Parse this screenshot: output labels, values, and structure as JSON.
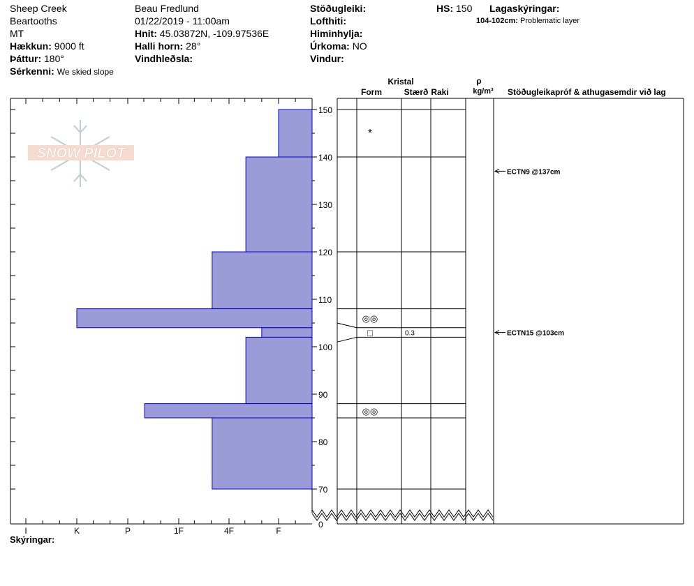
{
  "header": {
    "location": "Sheep Creek",
    "range": "Beartooths",
    "state": "MT",
    "elevation_label": "Hækkun:",
    "elevation_value": "9000 ft",
    "aspect_label": "Þáttur:",
    "aspect_value": "180°",
    "features_label": "Sérkenni:",
    "features_value": "We skied slope",
    "observer": "Beau  Fredlund",
    "datetime": "01/22/2019 - 11:00am",
    "coords_label": "Hnit:",
    "coords_value": "45.03872N, -109.97536E",
    "slope_label": "Halli horn:",
    "slope_value": "28°",
    "wind_loading_label": "Vindhleðsla:",
    "stability_label": "Stöðugleiki:",
    "air_temp_label": "Lofthiti:",
    "sky_label": "Himinhylja:",
    "precip_label": "Úrkoma:",
    "precip_value": "NO",
    "wind_label": "Vindur:",
    "hs_label": "HS:",
    "hs_value": "150",
    "layer_notes_label": "Lagaskýringar:",
    "layer_note_range": "104-102cm:",
    "layer_note_text": "Problematic layer"
  },
  "logo_text": "SNOW PILOT",
  "columns": {
    "crystal": "Kristal",
    "form": "Form",
    "size": "Stærð",
    "moisture": "Raki",
    "rho": "ρ",
    "density_unit": "kg/m³",
    "tests": "Stöðugleikapróf & athugasemdir við lag"
  },
  "footer": {
    "notes_label": "Skýringar:"
  },
  "colors": {
    "hardness_fill": "#9b9bd8",
    "hardness_stroke": "#0000cc"
  },
  "chart_data": {
    "type": "bar",
    "orientation": "horizontal",
    "y_axis": {
      "label": "",
      "ticks": [
        70,
        80,
        90,
        100,
        110,
        120,
        130,
        140,
        150
      ],
      "break_at": 0,
      "range": [
        70,
        150
      ]
    },
    "x_axis": {
      "label": "",
      "ticks": [
        "I",
        "K",
        "P",
        "1F",
        "4F",
        "F"
      ]
    },
    "hardness_layers": [
      {
        "top": 150,
        "bottom": 140,
        "hardness": "F"
      },
      {
        "top": 140,
        "bottom": 120,
        "hardness": "4F-"
      },
      {
        "top": 120,
        "bottom": 108,
        "hardness": "4F+"
      },
      {
        "top": 108,
        "bottom": 104,
        "hardness": "K"
      },
      {
        "top": 104,
        "bottom": 102,
        "hardness": "F+"
      },
      {
        "top": 102,
        "bottom": 88,
        "hardness": "4F-"
      },
      {
        "top": 88,
        "bottom": 85,
        "hardness": "P-"
      },
      {
        "top": 85,
        "bottom": 70,
        "hardness": "4F+"
      }
    ],
    "layer_lines": [
      150,
      140,
      120,
      108,
      104,
      102,
      88,
      85,
      70
    ],
    "grain_forms": [
      {
        "height": 145,
        "symbol": "*"
      },
      {
        "height": 106,
        "symbol": "◎◎"
      },
      {
        "height": 103,
        "symbol": "□",
        "size": "0.3"
      },
      {
        "height": 86.5,
        "symbol": "◎◎"
      }
    ],
    "tests": [
      {
        "height": 137,
        "label": "ECTN9 @137cm"
      },
      {
        "height": 103,
        "label": "ECTN15 @103cm"
      }
    ]
  }
}
